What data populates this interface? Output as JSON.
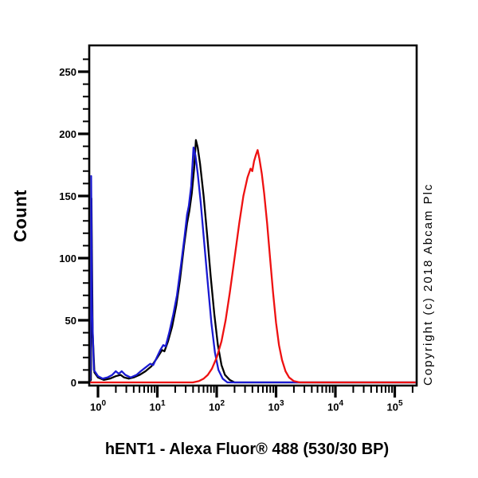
{
  "figure": {
    "y_axis_title": "Count",
    "copyright": "Copyright (c) 2018 Abcam Plc"
  },
  "chart_data": {
    "type": "line",
    "title": "hENT1 - Alexa Fluor® 488 (530/30 BP)",
    "xlabel": "hENT1 - Alexa Fluor® 488 (530/30 BP)",
    "ylabel": "Count",
    "x_scale": "log10",
    "grid": false,
    "legend": "none",
    "xlim_log10": [
      -0.15,
      5.37
    ],
    "ylim": [
      0,
      271
    ],
    "x_tick_base": "10",
    "x_tick_exponents": [
      "0",
      "1",
      "2",
      "3",
      "4",
      "5"
    ],
    "y_ticks": [
      0,
      50,
      100,
      150,
      200,
      250
    ],
    "y_minor_tick_step": 10,
    "x_minor_ticks": "log-spaced 2-9 within each decade",
    "series": [
      {
        "name": "black-curve",
        "color": "#000000",
        "points_log10x_count": [
          [
            -0.15,
            0
          ],
          [
            -0.12,
            2
          ],
          [
            -0.11,
            148
          ],
          [
            -0.09,
            40
          ],
          [
            -0.06,
            8
          ],
          [
            0.0,
            4
          ],
          [
            0.1,
            2
          ],
          [
            0.2,
            3
          ],
          [
            0.3,
            5
          ],
          [
            0.38,
            6
          ],
          [
            0.44,
            4
          ],
          [
            0.52,
            3
          ],
          [
            0.6,
            4
          ],
          [
            0.7,
            6
          ],
          [
            0.8,
            9
          ],
          [
            0.9,
            13
          ],
          [
            1.0,
            20
          ],
          [
            1.08,
            26
          ],
          [
            1.12,
            25
          ],
          [
            1.18,
            33
          ],
          [
            1.25,
            45
          ],
          [
            1.32,
            62
          ],
          [
            1.38,
            82
          ],
          [
            1.45,
            110
          ],
          [
            1.5,
            128
          ],
          [
            1.54,
            138
          ],
          [
            1.58,
            152
          ],
          [
            1.62,
            172
          ],
          [
            1.65,
            195
          ],
          [
            1.68,
            189
          ],
          [
            1.72,
            176
          ],
          [
            1.78,
            150
          ],
          [
            1.84,
            118
          ],
          [
            1.9,
            85
          ],
          [
            1.96,
            55
          ],
          [
            2.02,
            30
          ],
          [
            2.08,
            14
          ],
          [
            2.14,
            6
          ],
          [
            2.22,
            2
          ],
          [
            2.3,
            0
          ],
          [
            5.37,
            0
          ]
        ]
      },
      {
        "name": "blue-curve",
        "color": "#1a1ad2",
        "points_log10x_count": [
          [
            -0.15,
            0
          ],
          [
            -0.13,
            3
          ],
          [
            -0.115,
            166
          ],
          [
            -0.1,
            60
          ],
          [
            -0.07,
            10
          ],
          [
            0.0,
            5
          ],
          [
            0.08,
            3
          ],
          [
            0.16,
            4
          ],
          [
            0.24,
            6
          ],
          [
            0.3,
            9
          ],
          [
            0.35,
            7
          ],
          [
            0.4,
            9
          ],
          [
            0.46,
            6
          ],
          [
            0.55,
            4
          ],
          [
            0.65,
            6
          ],
          [
            0.72,
            9
          ],
          [
            0.8,
            12
          ],
          [
            0.88,
            15
          ],
          [
            0.93,
            14
          ],
          [
            1.0,
            21
          ],
          [
            1.05,
            26
          ],
          [
            1.1,
            30
          ],
          [
            1.14,
            29
          ],
          [
            1.2,
            40
          ],
          [
            1.27,
            55
          ],
          [
            1.33,
            70
          ],
          [
            1.4,
            95
          ],
          [
            1.46,
            118
          ],
          [
            1.5,
            135
          ],
          [
            1.53,
            142
          ],
          [
            1.57,
            158
          ],
          [
            1.61,
            189
          ],
          [
            1.64,
            183
          ],
          [
            1.68,
            168
          ],
          [
            1.73,
            145
          ],
          [
            1.79,
            112
          ],
          [
            1.85,
            80
          ],
          [
            1.91,
            48
          ],
          [
            1.97,
            24
          ],
          [
            2.03,
            10
          ],
          [
            2.1,
            3
          ],
          [
            2.18,
            0
          ],
          [
            5.37,
            0
          ]
        ]
      },
      {
        "name": "red-curve",
        "color": "#ee1111",
        "points_log10x_count": [
          [
            -0.15,
            0
          ],
          [
            1.6,
            0
          ],
          [
            1.7,
            1
          ],
          [
            1.78,
            3
          ],
          [
            1.85,
            6
          ],
          [
            1.92,
            11
          ],
          [
            2.0,
            20
          ],
          [
            2.08,
            33
          ],
          [
            2.15,
            50
          ],
          [
            2.22,
            72
          ],
          [
            2.3,
            100
          ],
          [
            2.38,
            128
          ],
          [
            2.45,
            150
          ],
          [
            2.52,
            165
          ],
          [
            2.57,
            172
          ],
          [
            2.6,
            170
          ],
          [
            2.63,
            178
          ],
          [
            2.66,
            183
          ],
          [
            2.69,
            187
          ],
          [
            2.72,
            180
          ],
          [
            2.76,
            168
          ],
          [
            2.8,
            152
          ],
          [
            2.85,
            128
          ],
          [
            2.9,
            100
          ],
          [
            2.95,
            72
          ],
          [
            3.0,
            48
          ],
          [
            3.05,
            30
          ],
          [
            3.1,
            18
          ],
          [
            3.16,
            9
          ],
          [
            3.22,
            4
          ],
          [
            3.3,
            1
          ],
          [
            3.4,
            0
          ],
          [
            5.37,
            0
          ]
        ]
      }
    ]
  }
}
